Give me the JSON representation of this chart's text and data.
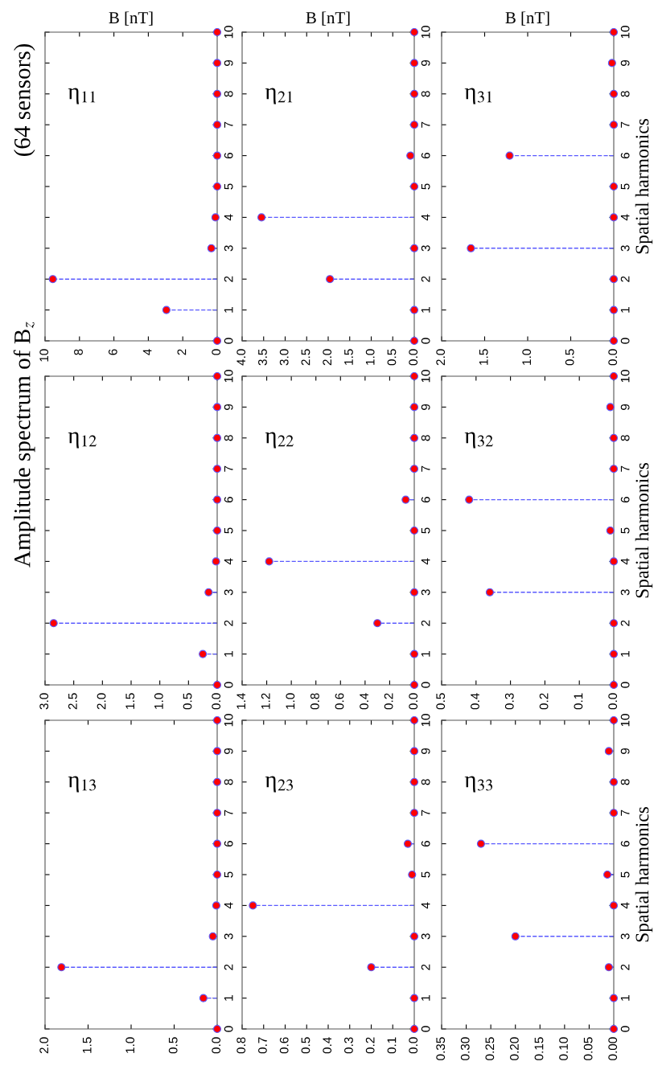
{
  "chart_data": [
    {
      "type": "lollipop",
      "orientation": "horizontal",
      "title": "(64 sensors)",
      "xlabel": "B [nT]",
      "annotations": [
        "η$_{11}$"
      ],
      "categories": [
        "10",
        "9",
        "8",
        "7",
        "6",
        "5",
        "4",
        "3",
        "2",
        "1",
        "0"
      ],
      "marker": "circle",
      "line_style": "dashed",
      "xlim": [
        10,
        0
      ],
      "xticks": [
        10,
        8,
        6,
        4,
        2,
        0
      ],
      "series": [
        {
          "color": "#5a5aff",
          "colors": [
            "#ff0000",
            "#ff0000",
            "#ff0000",
            "#ff0000",
            "#ff0000",
            "#ff0000",
            "#ff0000",
            "#ff0000",
            "#ff0000",
            "#ff0000",
            "#ff0000"
          ],
          "values": [
            0,
            0,
            0,
            0,
            0,
            0,
            0.1,
            0.34,
            9.55,
            2.95,
            0
          ]
        }
      ]
    },
    {
      "type": "lollipop",
      "orientation": "horizontal",
      "xlabel": "B [nT]",
      "annotations": [
        "η$_{21}$"
      ],
      "categories": [
        "10",
        "9",
        "8",
        "7",
        "6",
        "5",
        "4",
        "3",
        "2",
        "1",
        "0"
      ],
      "marker": "circle",
      "line_style": "dashed",
      "xlim": [
        4,
        0
      ],
      "xticks": [
        {
          "value": 4,
          "label": "4.0"
        },
        3.5,
        {
          "value": 3,
          "label": "3.0"
        },
        2.5,
        {
          "value": 2,
          "label": "2.0"
        },
        1.5,
        {
          "value": 1,
          "label": "1.0"
        },
        0.5,
        {
          "value": 0,
          "label": "0.0"
        }
      ],
      "series": [
        {
          "color": "#5a5aff",
          "colors": [
            "#ff0000",
            "#ff0000",
            "#ff0000",
            "#ff0000",
            "#ff0000",
            "#ff0000",
            "#ff0000",
            "#ff0000",
            "#ff0000",
            "#ff0000",
            "#ff0000"
          ],
          "values": [
            0,
            0,
            0,
            0,
            0.09,
            0,
            3.55,
            0,
            1.96,
            0,
            0
          ]
        }
      ]
    },
    {
      "type": "lollipop",
      "orientation": "horizontal",
      "xlabel": "B [nT]",
      "ylabel": "Spatial harmonics",
      "annotations": [
        "η$_{31}$"
      ],
      "categories": [
        "10",
        "9",
        "8",
        "7",
        "6",
        "5",
        "4",
        "3",
        "2",
        "1",
        "0"
      ],
      "marker": "circle",
      "line_style": "dashed",
      "xlim": [
        2,
        0
      ],
      "xticks": [
        {
          "value": 2,
          "label": "2.0"
        },
        1.5,
        {
          "value": 1,
          "label": "1.0"
        },
        0.5,
        {
          "value": 0,
          "label": "0.0"
        }
      ],
      "series": [
        {
          "color": "#5a5aff",
          "colors": [
            "#ff0000",
            "#ff0000",
            "#ff0000",
            "#ff0000",
            "#ff0000",
            "#ff0000",
            "#ff0000",
            "#ff0000",
            "#ff0000",
            "#ff0000",
            "#ff0000"
          ],
          "values": [
            0,
            0.02,
            0,
            0,
            1.21,
            0,
            0,
            1.66,
            0,
            0,
            0
          ]
        }
      ]
    },
    {
      "type": "lollipop",
      "orientation": "horizontal",
      "title": "Amplitude spectrum of B$_{z}$",
      "annotations": [
        "η$_{12}$"
      ],
      "categories": [
        "10",
        "9",
        "8",
        "7",
        "6",
        "5",
        "4",
        "3",
        "2",
        "1",
        "0"
      ],
      "marker": "circle",
      "line_style": "dashed",
      "xlim": [
        3,
        0
      ],
      "xticks": [
        {
          "value": 3,
          "label": "3.0"
        },
        2.5,
        {
          "value": 2,
          "label": "2.0"
        },
        1.5,
        {
          "value": 1,
          "label": "1.0"
        },
        0.5,
        {
          "value": 0,
          "label": "0.0"
        }
      ],
      "series": [
        {
          "color": "#5a5aff",
          "colors": [
            "#ff0000",
            "#ff0000",
            "#ff0000",
            "#ff0000",
            "#ff0000",
            "#ff0000",
            "#ff0000",
            "#ff0000",
            "#ff0000",
            "#ff0000",
            "#ff0000"
          ],
          "values": [
            0,
            0,
            0,
            0,
            0,
            0,
            0.02,
            0.15,
            2.85,
            0.25,
            0
          ]
        }
      ]
    },
    {
      "type": "lollipop",
      "orientation": "horizontal",
      "annotations": [
        "η$_{22}$"
      ],
      "categories": [
        "10",
        "9",
        "8",
        "7",
        "6",
        "5",
        "4",
        "3",
        "2",
        "1",
        "0"
      ],
      "marker": "circle",
      "line_style": "dashed",
      "xlim": [
        1.4,
        0
      ],
      "xticks": [
        1.4,
        1.2,
        {
          "value": 1,
          "label": "1.0"
        },
        0.8,
        0.6,
        0.4,
        0.2,
        {
          "value": 0,
          "label": "0.0"
        }
      ],
      "series": [
        {
          "color": "#5a5aff",
          "colors": [
            "#ff0000",
            "#ff0000",
            "#ff0000",
            "#ff0000",
            "#ff0000",
            "#ff0000",
            "#ff0000",
            "#ff0000",
            "#ff0000",
            "#ff0000",
            "#ff0000"
          ],
          "values": [
            0,
            0,
            0,
            0,
            0.07,
            0,
            1.18,
            0,
            0.3,
            0,
            0
          ]
        }
      ]
    },
    {
      "type": "lollipop",
      "orientation": "horizontal",
      "ylabel": "Spatial harmonics",
      "annotations": [
        "η$_{32}$"
      ],
      "categories": [
        "10",
        "9",
        "8",
        "7",
        "6",
        "5",
        "4",
        "3",
        "2",
        "1",
        "0"
      ],
      "marker": "circle",
      "line_style": "dashed",
      "xlim": [
        0.5,
        0
      ],
      "xticks": [
        0.5,
        0.4,
        0.3,
        0.2,
        0.1,
        {
          "value": 0,
          "label": "0.0"
        }
      ],
      "series": [
        {
          "color": "#5a5aff",
          "colors": [
            "#ff0000",
            "#ff0000",
            "#ff0000",
            "#ff0000",
            "#ff0000",
            "#ff0000",
            "#ff0000",
            "#ff0000",
            "#ff0000",
            "#ff0000",
            "#ff0000"
          ],
          "values": [
            0,
            0.01,
            0,
            0,
            0.42,
            0.01,
            0,
            0.36,
            0,
            0,
            0
          ]
        }
      ]
    },
    {
      "type": "lollipop",
      "orientation": "horizontal",
      "annotations": [
        "η$_{13}$"
      ],
      "categories": [
        "10",
        "9",
        "8",
        "7",
        "6",
        "5",
        "4",
        "3",
        "2",
        "1",
        "0"
      ],
      "marker": "circle",
      "line_style": "dashed",
      "xlim": [
        2,
        0
      ],
      "xticks": [
        {
          "value": 2,
          "label": "2.0"
        },
        1.5,
        {
          "value": 1,
          "label": "1.0"
        },
        0.5,
        {
          "value": 0,
          "label": "0.0"
        }
      ],
      "series": [
        {
          "color": "#5a5aff",
          "colors": [
            "#ff0000",
            "#ff0000",
            "#ff0000",
            "#ff0000",
            "#ff0000",
            "#ff0000",
            "#ff0000",
            "#ff0000",
            "#ff0000",
            "#ff0000",
            "#ff0000"
          ],
          "values": [
            0,
            0,
            0,
            0,
            0,
            0,
            0.01,
            0.05,
            1.81,
            0.16,
            0
          ]
        }
      ]
    },
    {
      "type": "lollipop",
      "orientation": "horizontal",
      "annotations": [
        "η$_{23}$"
      ],
      "categories": [
        "10",
        "9",
        "8",
        "7",
        "6",
        "5",
        "4",
        "3",
        "2",
        "1",
        "0"
      ],
      "marker": "circle",
      "line_style": "dashed",
      "xlim": [
        0.8,
        0
      ],
      "xticks": [
        0.8,
        0.7,
        0.6,
        0.5,
        0.4,
        0.3,
        0.2,
        0.1,
        {
          "value": 0,
          "label": "0.0"
        }
      ],
      "series": [
        {
          "color": "#5a5aff",
          "colors": [
            "#ff0000",
            "#ff0000",
            "#ff0000",
            "#ff0000",
            "#ff0000",
            "#ff0000",
            "#ff0000",
            "#ff0000",
            "#ff0000",
            "#ff0000",
            "#ff0000"
          ],
          "values": [
            0,
            0,
            0,
            0,
            0.03,
            0.01,
            0.75,
            0,
            0.2,
            0,
            0
          ]
        }
      ]
    },
    {
      "type": "lollipop",
      "orientation": "horizontal",
      "ylabel": "Spatial harmonics",
      "annotations": [
        "η$_{33}$"
      ],
      "categories": [
        "10",
        "9",
        "8",
        "7",
        "6",
        "5",
        "4",
        "3",
        "2",
        "1",
        "0"
      ],
      "marker": "circle",
      "line_style": "dashed",
      "xlim": [
        0.35,
        0
      ],
      "xticks": [
        0.35,
        {
          "value": 0.3,
          "label": "0.30"
        },
        0.25,
        {
          "value": 0.2,
          "label": "0.20"
        },
        0.15,
        {
          "value": 0.1,
          "label": "0.10"
        },
        0.05,
        {
          "value": 0,
          "label": "0.00"
        }
      ],
      "series": [
        {
          "color": "#5a5aff",
          "colors": [
            "#ff0000",
            "#ff0000",
            "#ff0000",
            "#ff0000",
            "#ff0000",
            "#ff0000",
            "#ff0000",
            "#ff0000",
            "#ff0000",
            "#ff0000",
            "#ff0000"
          ],
          "values": [
            0,
            0.01,
            0,
            0,
            0.27,
            0.013,
            0,
            0.2,
            0.01,
            0,
            0
          ]
        }
      ]
    }
  ]
}
